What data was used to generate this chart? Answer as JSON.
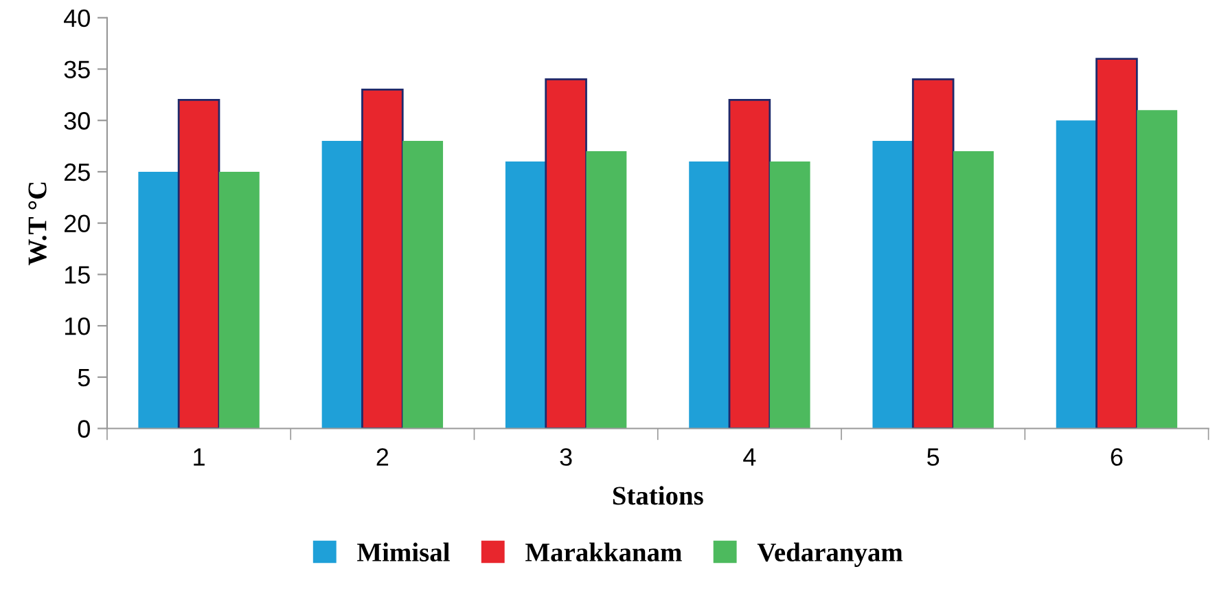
{
  "chart_data": {
    "type": "bar",
    "xlabel": "Stations",
    "ylabel": "W.T °C",
    "categories": [
      "1",
      "2",
      "3",
      "4",
      "5",
      "6"
    ],
    "series": [
      {
        "name": "Mimisal",
        "color": "#1fa0d8",
        "values": [
          25,
          28,
          26,
          26,
          28,
          30
        ]
      },
      {
        "name": "Marakkanam",
        "color": "#e8262d",
        "values": [
          32,
          33,
          34,
          32,
          34,
          36
        ]
      },
      {
        "name": "Vedaranyam",
        "color": "#4dba5e",
        "values": [
          25,
          28,
          27,
          26,
          27,
          31
        ]
      }
    ],
    "ylim": [
      0,
      40
    ],
    "yticks": [
      0,
      5,
      10,
      15,
      20,
      25,
      30,
      35,
      40
    ],
    "grid": false,
    "legend": "bottom"
  }
}
